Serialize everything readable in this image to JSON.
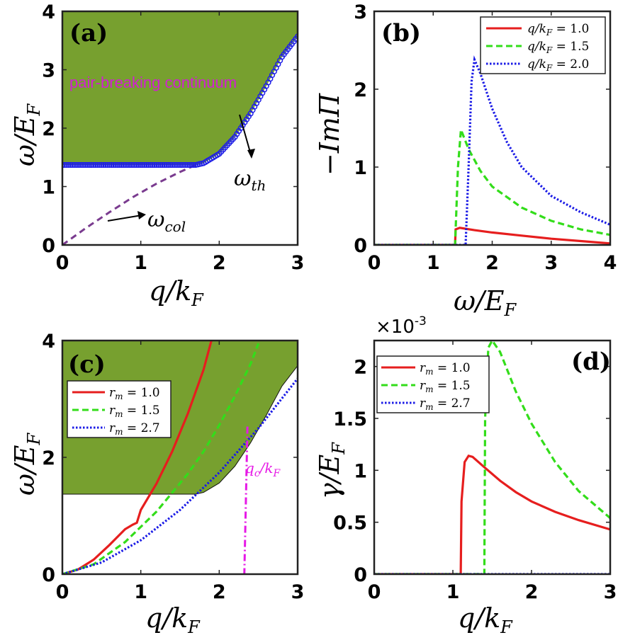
{
  "chart_data": [
    {
      "panel": "(a)",
      "type": "line",
      "xlabel": "q/k_F",
      "ylabel": "ω/E_F",
      "xlim": [
        0,
        3
      ],
      "ylim": [
        0,
        4
      ],
      "xticks": [
        "0",
        "1",
        "2",
        "3"
      ],
      "yticks": [
        "0",
        "1",
        "2",
        "3",
        "4"
      ],
      "shaded_region_label": "pair-breaking continuum",
      "shade_color": "#77a02f",
      "series": [
        {
          "name": "ω_th",
          "style": "circles",
          "color": "#1f1fe6",
          "x": [
            0,
            0.5,
            1.0,
            1.5,
            1.7,
            1.8,
            2.0,
            2.2,
            2.4,
            2.6,
            2.8,
            3.0
          ],
          "y": [
            1.37,
            1.37,
            1.37,
            1.37,
            1.37,
            1.4,
            1.56,
            1.85,
            2.25,
            2.72,
            3.22,
            3.57
          ]
        },
        {
          "name": "ω_col",
          "style": "dashed",
          "color": "#7a3b8f",
          "x": [
            0,
            0.3,
            0.6,
            0.9,
            1.2,
            1.5,
            1.7
          ],
          "y": [
            0,
            0.29,
            0.56,
            0.82,
            1.05,
            1.25,
            1.37
          ]
        }
      ],
      "annotations": [
        "ω_th",
        "ω_col"
      ]
    },
    {
      "panel": "(b)",
      "type": "line",
      "xlabel": "ω/E_F",
      "ylabel": "−ImΠ",
      "xlim": [
        0,
        4
      ],
      "ylim": [
        0,
        3
      ],
      "xticks": [
        "0",
        "1",
        "2",
        "3",
        "4"
      ],
      "yticks": [
        "0",
        "1",
        "2",
        "3"
      ],
      "legend": [
        "q/k_F = 1.0",
        "q/k_F = 1.5",
        "q/k_F = 2.0"
      ],
      "series": [
        {
          "name": "q/k_F = 1.0",
          "style": "solid",
          "color": "#e61e1e",
          "x": [
            0,
            1.37,
            1.38,
            1.45,
            1.7,
            2.0,
            2.5,
            3.0,
            3.5,
            4.0
          ],
          "y": [
            0,
            0,
            0.2,
            0.22,
            0.19,
            0.16,
            0.12,
            0.08,
            0.05,
            0.02
          ]
        },
        {
          "name": "q/k_F = 1.5",
          "style": "dashed",
          "color": "#33dd1a",
          "x": [
            0,
            1.37,
            1.42,
            1.47,
            1.6,
            1.8,
            2.0,
            2.5,
            3.0,
            3.5,
            4.0
          ],
          "y": [
            0,
            0,
            1.0,
            1.48,
            1.23,
            0.95,
            0.75,
            0.48,
            0.31,
            0.2,
            0.13
          ]
        },
        {
          "name": "q/k_F = 2.0",
          "style": "dotted",
          "color": "#1a1ae6",
          "x": [
            0,
            1.55,
            1.6,
            1.65,
            1.7,
            1.8,
            2.0,
            2.25,
            2.5,
            3.0,
            3.5,
            4.0
          ],
          "y": [
            0,
            0,
            1.0,
            2.1,
            2.38,
            2.2,
            1.75,
            1.32,
            1.0,
            0.63,
            0.42,
            0.26
          ]
        }
      ]
    },
    {
      "panel": "(c)",
      "type": "line",
      "xlabel": "q/k_F",
      "ylabel": "ω/E_F",
      "xlim": [
        0,
        3
      ],
      "ylim": [
        0,
        4
      ],
      "xticks": [
        "0",
        "1",
        "2",
        "3"
      ],
      "yticks": [
        "0",
        "2",
        "4"
      ],
      "shade_color": "#77a02f",
      "shade_boundary": {
        "x": [
          0,
          1.7,
          1.8,
          2.0,
          2.2,
          2.4,
          2.6,
          2.8,
          3.0
        ],
        "y": [
          1.37,
          1.37,
          1.4,
          1.56,
          1.85,
          2.25,
          2.72,
          3.22,
          3.57
        ]
      },
      "legend": [
        "r_m = 1.0",
        "r_m = 1.5",
        "r_m = 2.7"
      ],
      "series": [
        {
          "name": "r_m = 1.0",
          "style": "solid",
          "color": "#e61e1e",
          "x": [
            0,
            0.2,
            0.4,
            0.6,
            0.8,
            0.9,
            0.95,
            1.0,
            1.2,
            1.4,
            1.6,
            1.8,
            1.9
          ],
          "y": [
            0,
            0.08,
            0.25,
            0.5,
            0.77,
            0.85,
            0.88,
            1.1,
            1.55,
            2.1,
            2.75,
            3.5,
            4.0
          ]
        },
        {
          "name": "r_m = 1.5",
          "style": "dashed",
          "color": "#33dd1a",
          "x": [
            0,
            0.4,
            0.8,
            1.2,
            1.6,
            1.8,
            2.0,
            2.2,
            2.4,
            2.5
          ],
          "y": [
            0,
            0.17,
            0.55,
            1.07,
            1.72,
            2.1,
            2.55,
            3.05,
            3.6,
            3.95
          ]
        },
        {
          "name": "r_m = 2.7",
          "style": "dotted",
          "color": "#1a1ae6",
          "x": [
            0,
            0.5,
            1.0,
            1.5,
            2.0,
            2.5,
            3.0
          ],
          "y": [
            0,
            0.2,
            0.58,
            1.1,
            1.74,
            2.5,
            3.35
          ]
        }
      ],
      "annotations": [
        "q_c/k_F"
      ],
      "qc_value": 2.32
    },
    {
      "panel": "(d)",
      "type": "line",
      "xlabel": "q/k_F",
      "ylabel": "γ/E_F",
      "xlim": [
        0,
        3
      ],
      "ylim": [
        0,
        2.25
      ],
      "multiplier": "×10^-3",
      "xticks": [
        "0",
        "1",
        "2",
        "3"
      ],
      "yticks": [
        "0",
        "0.5",
        "1",
        "1.5",
        "2"
      ],
      "legend": [
        "r_m = 1.0",
        "r_m = 1.5",
        "r_m = 2.7"
      ],
      "series": [
        {
          "name": "r_m = 1.0",
          "style": "solid",
          "color": "#e61e1e",
          "x": [
            0,
            1.1,
            1.11,
            1.15,
            1.2,
            1.25,
            1.4,
            1.6,
            1.8,
            2.0,
            2.3,
            2.6,
            3.0
          ],
          "y": [
            0,
            0,
            0.7,
            1.08,
            1.14,
            1.13,
            1.03,
            0.9,
            0.79,
            0.7,
            0.6,
            0.52,
            0.43
          ]
        },
        {
          "name": "r_m = 1.5",
          "style": "dashed",
          "color": "#33dd1a",
          "x": [
            0,
            1.4,
            1.41,
            1.45,
            1.5,
            1.6,
            1.8,
            2.0,
            2.3,
            2.6,
            3.0
          ],
          "y": [
            0,
            0,
            1.5,
            2.18,
            2.25,
            2.14,
            1.76,
            1.45,
            1.08,
            0.8,
            0.54
          ]
        },
        {
          "name": "r_m = 2.7",
          "style": "dotted",
          "color": "#1a1ae6",
          "x": [
            0,
            3.0
          ],
          "y": [
            0,
            0
          ]
        }
      ]
    }
  ],
  "labels": {
    "a_panel": "(a)",
    "b_panel": "(b)",
    "c_panel": "(c)",
    "d_panel": "(d)",
    "a_xlabel": "q/k",
    "a_xsub": "F",
    "a_ylabel": "ω/E",
    "a_ysub": "F",
    "b_xlabel": "ω/E",
    "b_xsub": "F",
    "b_ylabel": "−ImΠ",
    "c_xlabel": "q/k",
    "c_xsub": "F",
    "c_ylabel": "ω/E",
    "c_ysub": "F",
    "d_xlabel": "q/k",
    "d_xsub": "F",
    "d_ylabel": "γ/E",
    "d_ysub": "F",
    "pair_breaking": "pair-breaking continuum",
    "omega_th": "ω",
    "omega_th_sub": "th",
    "omega_col": "ω",
    "omega_col_sub": "col",
    "qc": "q",
    "qc_sub": "c",
    "qc_rest": "/k",
    "qc_sub2": "F",
    "multiplier_base": "×10",
    "multiplier_exp": "-3",
    "legend_b": [
      {
        "var": "q/k",
        "sub": "F",
        "val": " = 1.0"
      },
      {
        "var": "q/k",
        "sub": "F",
        "val": " = 1.5"
      },
      {
        "var": "q/k",
        "sub": "F",
        "val": " = 2.0"
      }
    ],
    "legend_cd": [
      {
        "var": "r",
        "sub": "m",
        "val": " = 1.0"
      },
      {
        "var": "r",
        "sub": "m",
        "val": " = 1.5"
      },
      {
        "var": "r",
        "sub": "m",
        "val": " = 2.7"
      }
    ]
  }
}
